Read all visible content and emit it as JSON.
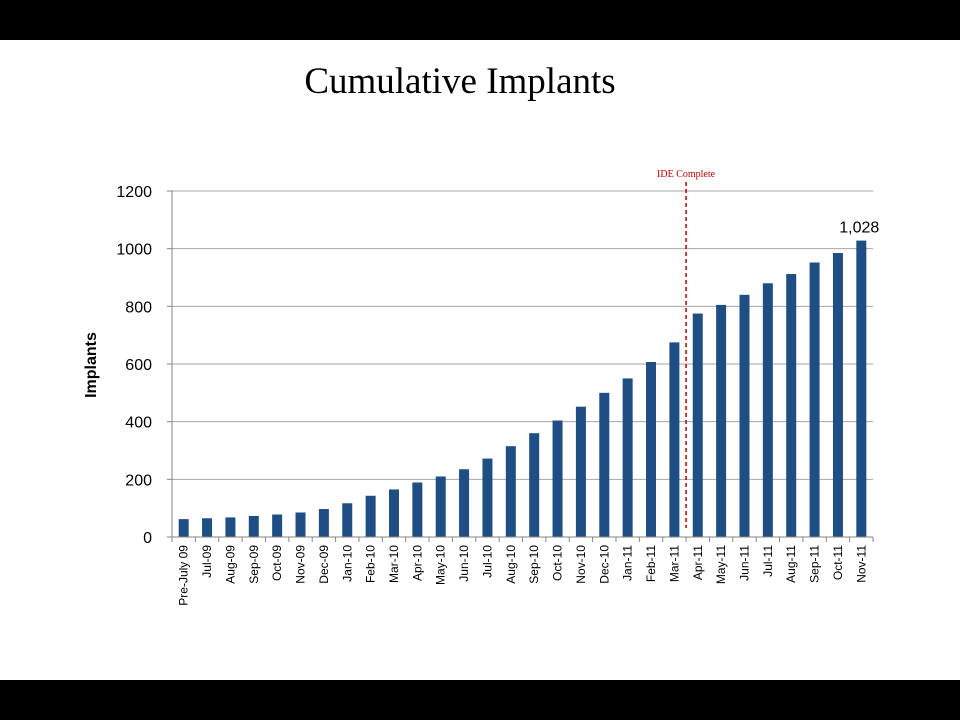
{
  "slide": {
    "title": "Cumulative Implants"
  },
  "chart_data": {
    "type": "bar",
    "title": "Cumulative Implants",
    "xlabel": "",
    "ylabel": "Implants",
    "ylim": [
      0,
      1200
    ],
    "yticks": [
      0,
      200,
      400,
      600,
      800,
      1000,
      1200
    ],
    "grid": true,
    "categories": [
      "Pre-July 09",
      "Jul-09",
      "Aug-09",
      "Sep-09",
      "Oct-09",
      "Nov-09",
      "Dec-09",
      "Jan-10",
      "Feb-10",
      "Mar-10",
      "Apr-10",
      "May-10",
      "Jun-10",
      "Jul-10",
      "Aug-10",
      "Sep-10",
      "Oct-10",
      "Nov-10",
      "Dec-10",
      "Jan-11",
      "Feb-11",
      "Mar-11",
      "Apr-11",
      "May-11",
      "Jun-11",
      "Jul-11",
      "Aug-11",
      "Sep-11",
      "Oct-11",
      "Nov-11"
    ],
    "values": [
      62,
      65,
      68,
      73,
      78,
      85,
      97,
      117,
      143,
      165,
      189,
      210,
      235,
      272,
      315,
      360,
      404,
      452,
      500,
      550,
      607,
      675,
      775,
      805,
      840,
      880,
      912,
      952,
      985,
      1028
    ],
    "bar_color": "#1f4e85",
    "annotations": {
      "vline": {
        "label": "IDE Complete",
        "after_category": "Mar-11",
        "color": "#c00000"
      },
      "last_value_label": "1,028"
    }
  }
}
